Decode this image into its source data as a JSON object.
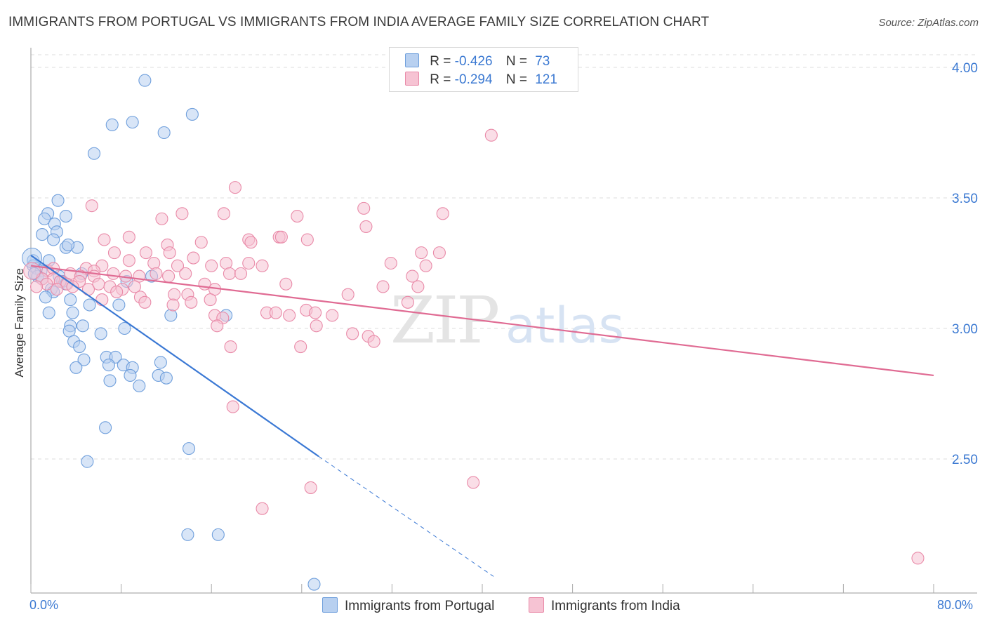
{
  "title": "IMMIGRANTS FROM PORTUGAL VS IMMIGRANTS FROM INDIA AVERAGE FAMILY SIZE CORRELATION CHART",
  "source": "Source: ZipAtlas.com",
  "watermark": {
    "zip": "ZIP",
    "atlas": "atlas"
  },
  "colors": {
    "portugal_fill": "#b8d0f0",
    "portugal_stroke": "#6f9fdc",
    "portugal_line": "#3a78d4",
    "india_fill": "#f6c3d3",
    "india_stroke": "#e98aa8",
    "india_line": "#e06b93",
    "axis_value": "#3b79d2",
    "grid": "#dddddd"
  },
  "legend": {
    "r_label": "R =",
    "n_label": "N =",
    "rows": [
      {
        "r": "-0.426",
        "n": "73"
      },
      {
        "r": "-0.294",
        "n": "121"
      }
    ]
  },
  "chart_data": {
    "type": "scatter",
    "title": "IMMIGRANTS FROM PORTUGAL VS IMMIGRANTS FROM INDIA AVERAGE FAMILY SIZE CORRELATION CHART",
    "xlabel": "",
    "ylabel": "Average Family Size",
    "xlim": [
      0,
      80
    ],
    "ylim": [
      2.0,
      4.1
    ],
    "x_tick_labels": {
      "left": "0.0%",
      "right": "80.0%"
    },
    "y_ticks": [
      2.5,
      3.0,
      3.5,
      4.0
    ],
    "y_tick_labels": [
      "2.50",
      "3.00",
      "3.50",
      "4.00"
    ],
    "grid": "horizontal dashed",
    "legend_position": "top-center",
    "series": [
      {
        "name": "Immigrants from Portugal",
        "r": -0.426,
        "n": 73,
        "trend": {
          "x0": 0,
          "y0": 3.28,
          "x1": 25.5,
          "y1": 2.51,
          "dashed_to_x": 41,
          "dashed_to_y": 2.05
        },
        "points": [
          [
            10.1,
            3.95
          ],
          [
            14.3,
            3.82
          ],
          [
            7.2,
            3.78
          ],
          [
            9.0,
            3.79
          ],
          [
            11.8,
            3.75
          ],
          [
            5.6,
            3.67
          ],
          [
            2.4,
            3.49
          ],
          [
            1.5,
            3.44
          ],
          [
            3.1,
            3.43
          ],
          [
            1.2,
            3.42
          ],
          [
            2.1,
            3.4
          ],
          [
            2.3,
            3.37
          ],
          [
            1.0,
            3.36
          ],
          [
            2.0,
            3.34
          ],
          [
            3.1,
            3.31
          ],
          [
            4.1,
            3.31
          ],
          [
            3.3,
            3.32
          ],
          [
            0.2,
            3.26
          ],
          [
            1.6,
            3.26
          ],
          [
            0.2,
            3.24
          ],
          [
            0.5,
            3.23
          ],
          [
            0.9,
            3.22
          ],
          [
            0.6,
            3.2
          ],
          [
            0.3,
            3.21
          ],
          [
            1.0,
            3.19
          ],
          [
            4.5,
            3.21
          ],
          [
            2.5,
            3.2
          ],
          [
            2.8,
            3.18
          ],
          [
            10.7,
            3.2
          ],
          [
            3.1,
            3.17
          ],
          [
            8.5,
            3.18
          ],
          [
            1.8,
            3.15
          ],
          [
            2.0,
            3.14
          ],
          [
            1.3,
            3.12
          ],
          [
            3.5,
            3.11
          ],
          [
            5.2,
            3.09
          ],
          [
            7.8,
            3.09
          ],
          [
            3.7,
            3.06
          ],
          [
            1.6,
            3.06
          ],
          [
            12.4,
            3.05
          ],
          [
            17.3,
            3.05
          ],
          [
            4.6,
            3.01
          ],
          [
            3.5,
            3.01
          ],
          [
            3.4,
            2.99
          ],
          [
            6.2,
            2.98
          ],
          [
            8.3,
            3.0
          ],
          [
            3.8,
            2.95
          ],
          [
            4.3,
            2.93
          ],
          [
            6.7,
            2.89
          ],
          [
            7.5,
            2.89
          ],
          [
            4.7,
            2.88
          ],
          [
            6.9,
            2.86
          ],
          [
            8.2,
            2.86
          ],
          [
            9.0,
            2.85
          ],
          [
            11.5,
            2.87
          ],
          [
            4.0,
            2.85
          ],
          [
            8.8,
            2.82
          ],
          [
            11.3,
            2.82
          ],
          [
            12.0,
            2.81
          ],
          [
            7.0,
            2.8
          ],
          [
            9.6,
            2.78
          ],
          [
            6.6,
            2.62
          ],
          [
            14.0,
            2.54
          ],
          [
            5.0,
            2.49
          ],
          [
            13.9,
            2.21
          ],
          [
            16.6,
            2.21
          ],
          [
            25.1,
            2.02
          ]
        ]
      },
      {
        "name": "Immigrants from India",
        "r": -0.294,
        "n": 121,
        "trend": {
          "x0": 0,
          "y0": 3.24,
          "x1": 80,
          "y1": 2.82
        },
        "points": [
          [
            40.8,
            3.74
          ],
          [
            18.1,
            3.54
          ],
          [
            5.4,
            3.47
          ],
          [
            13.4,
            3.44
          ],
          [
            17.1,
            3.44
          ],
          [
            29.5,
            3.46
          ],
          [
            23.6,
            3.43
          ],
          [
            36.5,
            3.44
          ],
          [
            11.6,
            3.42
          ],
          [
            29.7,
            3.39
          ],
          [
            8.7,
            3.35
          ],
          [
            6.5,
            3.34
          ],
          [
            19.3,
            3.34
          ],
          [
            22.0,
            3.35
          ],
          [
            22.2,
            3.35
          ],
          [
            24.5,
            3.34
          ],
          [
            12.1,
            3.32
          ],
          [
            15.1,
            3.33
          ],
          [
            7.4,
            3.29
          ],
          [
            10.2,
            3.29
          ],
          [
            12.3,
            3.29
          ],
          [
            19.5,
            3.33
          ],
          [
            34.6,
            3.29
          ],
          [
            36.2,
            3.29
          ],
          [
            8.7,
            3.26
          ],
          [
            14.4,
            3.27
          ],
          [
            10.9,
            3.25
          ],
          [
            19.3,
            3.25
          ],
          [
            20.5,
            3.24
          ],
          [
            6.3,
            3.24
          ],
          [
            4.9,
            3.23
          ],
          [
            5.6,
            3.22
          ],
          [
            13.0,
            3.24
          ],
          [
            16.0,
            3.24
          ],
          [
            17.3,
            3.25
          ],
          [
            1.5,
            3.22
          ],
          [
            2.0,
            3.23
          ],
          [
            3.5,
            3.21
          ],
          [
            4.4,
            3.2
          ],
          [
            5.6,
            3.2
          ],
          [
            7.3,
            3.21
          ],
          [
            11.1,
            3.21
          ],
          [
            12.2,
            3.2
          ],
          [
            13.7,
            3.21
          ],
          [
            17.6,
            3.21
          ],
          [
            18.6,
            3.21
          ],
          [
            8.4,
            3.2
          ],
          [
            9.6,
            3.2
          ],
          [
            31.9,
            3.25
          ],
          [
            33.8,
            3.2
          ],
          [
            35.0,
            3.24
          ],
          [
            2.0,
            3.19
          ],
          [
            2.6,
            3.18
          ],
          [
            3.2,
            3.17
          ],
          [
            4.3,
            3.18
          ],
          [
            6.0,
            3.17
          ],
          [
            1.0,
            3.19
          ],
          [
            1.4,
            3.17
          ],
          [
            0.5,
            3.16
          ],
          [
            2.3,
            3.15
          ],
          [
            3.7,
            3.16
          ],
          [
            5.1,
            3.15
          ],
          [
            7.0,
            3.16
          ],
          [
            8.1,
            3.15
          ],
          [
            9.2,
            3.16
          ],
          [
            15.4,
            3.17
          ],
          [
            22.6,
            3.17
          ],
          [
            31.2,
            3.16
          ],
          [
            34.3,
            3.16
          ],
          [
            16.3,
            3.15
          ],
          [
            28.1,
            3.13
          ],
          [
            7.6,
            3.14
          ],
          [
            9.7,
            3.12
          ],
          [
            12.7,
            3.13
          ],
          [
            13.9,
            3.13
          ],
          [
            14.2,
            3.1
          ],
          [
            10.1,
            3.1
          ],
          [
            12.6,
            3.09
          ],
          [
            15.9,
            3.11
          ],
          [
            33.4,
            3.1
          ],
          [
            6.3,
            3.11
          ],
          [
            24.4,
            3.07
          ],
          [
            25.2,
            3.06
          ],
          [
            20.9,
            3.06
          ],
          [
            21.7,
            3.06
          ],
          [
            16.3,
            3.05
          ],
          [
            17.0,
            3.04
          ],
          [
            22.9,
            3.05
          ],
          [
            26.7,
            3.05
          ],
          [
            16.5,
            3.01
          ],
          [
            25.3,
            3.01
          ],
          [
            28.5,
            2.98
          ],
          [
            29.9,
            2.97
          ],
          [
            30.4,
            2.95
          ],
          [
            23.9,
            2.93
          ],
          [
            17.7,
            2.93
          ],
          [
            17.9,
            2.7
          ],
          [
            24.8,
            2.39
          ],
          [
            39.2,
            2.41
          ],
          [
            20.5,
            2.31
          ],
          [
            78.6,
            2.12
          ]
        ]
      }
    ]
  },
  "bottom_legend": [
    {
      "label": "Immigrants from Portugal"
    },
    {
      "label": "Immigrants from India"
    }
  ]
}
